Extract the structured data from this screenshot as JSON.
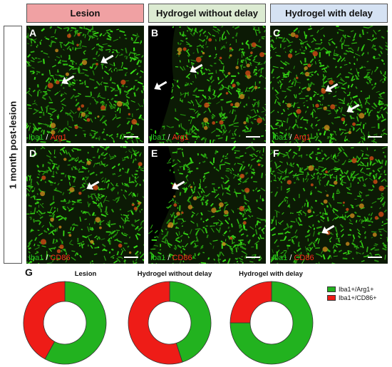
{
  "headers": [
    {
      "label": "Lesion",
      "bg": "#f0a1a3"
    },
    {
      "label": "Hydrogel without delay",
      "bg": "#dcebd2"
    },
    {
      "label": "Hydrogel with delay",
      "bg": "#d5e2f3"
    }
  ],
  "side_label": "1 month post-lesion",
  "panels": [
    {
      "letter": "A",
      "stain_red": "Arg1"
    },
    {
      "letter": "B",
      "stain_red": "Arg1"
    },
    {
      "letter": "C",
      "stain_red": "Arg1"
    },
    {
      "letter": "D",
      "stain_red": "CD86"
    },
    {
      "letter": "E",
      "stain_red": "CD86"
    },
    {
      "letter": "F",
      "stain_red": "CD86"
    }
  ],
  "stain_green": "Iba1",
  "stain_sep": "/",
  "colors": {
    "green": "#22b21f",
    "red": "#ee1c17"
  },
  "chart_data": {
    "type": "pie",
    "label": "G",
    "titles": [
      "Lesion",
      "Hydrogel without delay",
      "Hydrogel with delay"
    ],
    "series": [
      {
        "name": "Iba1+/Arg1+",
        "values": [
          58,
          45,
          75
        ]
      },
      {
        "name": "Iba1+/CD86+",
        "values": [
          42,
          55,
          25
        ]
      }
    ],
    "legend_position": "right"
  }
}
